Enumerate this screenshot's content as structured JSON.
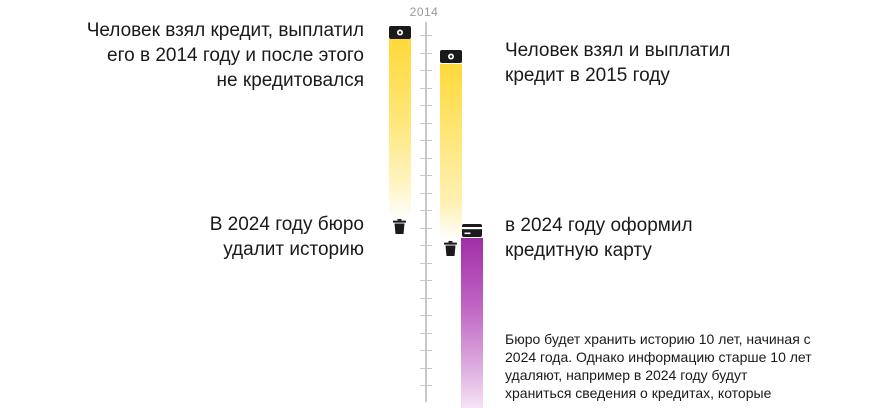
{
  "timeline": {
    "year_label": "2014"
  },
  "cases": {
    "case_a": {
      "taken_text": "Человек взял кредит, выплатил\nего в 2014 году и после этого\nне кредитовался",
      "deleted_text": "В 2024 году бюро\nудалит историю"
    },
    "case_b": {
      "taken_text": "Человек взял и выплатил\nкредит в 2015 году",
      "card_text": "в 2024 году оформил\nкредитную карту"
    }
  },
  "note": {
    "text": "Бюро будет хранить историю 10 лет, начиная с 2024 года. Однако информацию старше 10 лет удаляют, например в 2024 году будут храниться сведения о кредитах, которые"
  },
  "icons": {
    "loan": "banknote-icon",
    "delete": "trash-icon",
    "card": "credit-card-icon"
  },
  "colors": {
    "yellow": "#ffd93a",
    "purple": "#a02fa6",
    "axis": "#c9c9c9"
  }
}
